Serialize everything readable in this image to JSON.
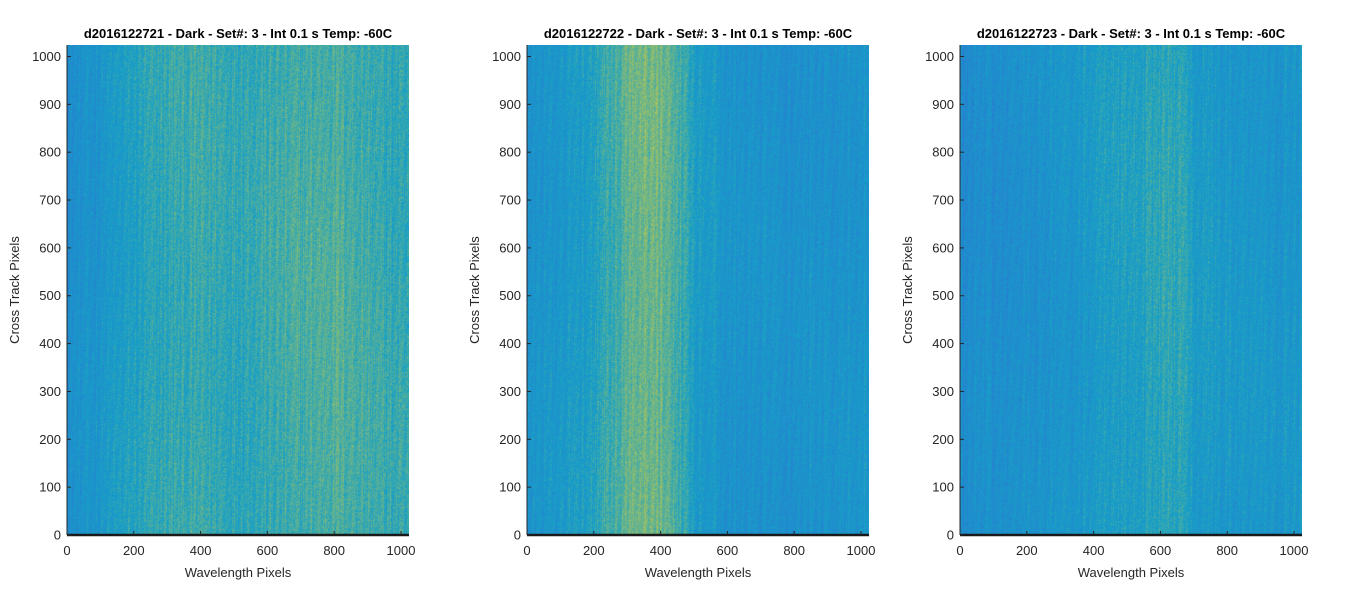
{
  "chart_data": [
    {
      "type": "heatmap",
      "title": "d2016122721 - Dark - Set#: 3 - Int 0.1 s Temp: -60C",
      "xlabel": "Wavelength Pixels",
      "ylabel": "Cross Track Pixels",
      "xlim": [
        0,
        1024
      ],
      "ylim": [
        0,
        1024
      ],
      "xticks": [
        0,
        200,
        400,
        600,
        800,
        1000
      ],
      "yticks": [
        0,
        100,
        200,
        300,
        400,
        500,
        600,
        700,
        800,
        900,
        1000
      ],
      "xtick_labels": [
        "0",
        "200",
        "400",
        "600",
        "800",
        "1000"
      ],
      "ytick_labels": [
        "0",
        "100",
        "200",
        "300",
        "400",
        "500",
        "600",
        "700",
        "800",
        "900",
        "1000"
      ],
      "intensity_profile": {
        "x": [
          0,
          100,
          200,
          300,
          400,
          500,
          600,
          700,
          800,
          900,
          1024
        ],
        "level": [
          0.32,
          0.4,
          0.5,
          0.58,
          0.6,
          0.58,
          0.6,
          0.63,
          0.68,
          0.62,
          0.55
        ]
      }
    },
    {
      "type": "heatmap",
      "title": "d2016122722 - Dark - Set#: 3 - Int 0.1 s Temp: -60C",
      "xlabel": "Wavelength Pixels",
      "ylabel": "Cross Track Pixels",
      "xlim": [
        0,
        1024
      ],
      "ylim": [
        0,
        1024
      ],
      "xticks": [
        0,
        200,
        400,
        600,
        800,
        1000
      ],
      "yticks": [
        0,
        100,
        200,
        300,
        400,
        500,
        600,
        700,
        800,
        900,
        1000
      ],
      "xtick_labels": [
        "0",
        "200",
        "400",
        "600",
        "800",
        "1000"
      ],
      "ytick_labels": [
        "0",
        "100",
        "200",
        "300",
        "400",
        "500",
        "600",
        "700",
        "800",
        "900",
        "1000"
      ],
      "intensity_profile": {
        "x": [
          0,
          100,
          200,
          250,
          300,
          350,
          400,
          450,
          500,
          600,
          700,
          800,
          900,
          1024
        ],
        "level": [
          0.35,
          0.42,
          0.5,
          0.62,
          0.72,
          0.76,
          0.74,
          0.66,
          0.48,
          0.38,
          0.36,
          0.36,
          0.38,
          0.4
        ]
      }
    },
    {
      "type": "heatmap",
      "title": "d2016122723 - Dark - Set#: 3 - Int 0.1 s Temp: -60C",
      "xlabel": "Wavelength Pixels",
      "ylabel": "Cross Track Pixels",
      "xlim": [
        0,
        1024
      ],
      "ylim": [
        0,
        1024
      ],
      "xticks": [
        0,
        200,
        400,
        600,
        800,
        1000
      ],
      "yticks": [
        0,
        100,
        200,
        300,
        400,
        500,
        600,
        700,
        800,
        900,
        1000
      ],
      "xtick_labels": [
        "0",
        "200",
        "400",
        "600",
        "800",
        "1000"
      ],
      "ytick_labels": [
        "0",
        "100",
        "200",
        "300",
        "400",
        "500",
        "600",
        "700",
        "800",
        "900",
        "1000"
      ],
      "intensity_profile": {
        "x": [
          0,
          100,
          200,
          300,
          400,
          500,
          600,
          650,
          700,
          800,
          900,
          1024
        ],
        "level": [
          0.3,
          0.33,
          0.36,
          0.38,
          0.45,
          0.48,
          0.55,
          0.57,
          0.46,
          0.42,
          0.4,
          0.42
        ]
      }
    }
  ],
  "colors": {
    "background": "#ffffff",
    "axis": "#262626",
    "baseline": "#1a1a1a",
    "colormap_low": "#2f6fd6",
    "colormap_mid": "#16a0c7",
    "colormap_high": "#c4c94a"
  }
}
